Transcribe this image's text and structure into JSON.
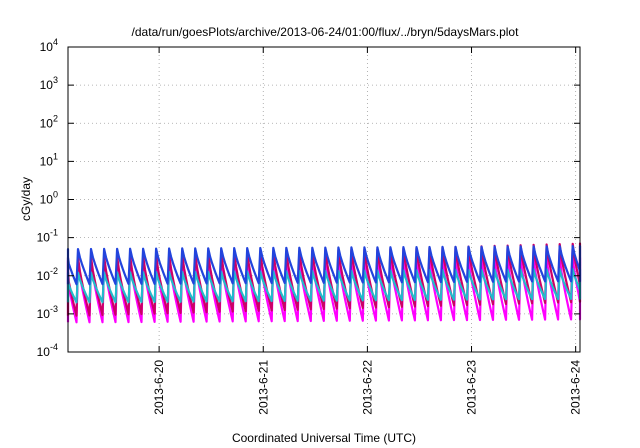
{
  "chart_data": {
    "type": "line",
    "title": "/data/run/goesPlots/archive/2013-06-24/01:00/flux/../bryn/5daysMars.plot",
    "xlabel": "Coordinated Universal Time (UTC)",
    "ylabel": "cGy/day",
    "y_scale": "log",
    "ylim": [
      0.0001,
      10000
    ],
    "y_ticks": [
      {
        "base": "10",
        "exp": "-4",
        "value": 0.0001
      },
      {
        "base": "10",
        "exp": "-3",
        "value": 0.001
      },
      {
        "base": "10",
        "exp": "-2",
        "value": 0.01
      },
      {
        "base": "10",
        "exp": "-1",
        "value": 0.1
      },
      {
        "base": "10",
        "exp": "0",
        "value": 1
      },
      {
        "base": "10",
        "exp": "1",
        "value": 10
      },
      {
        "base": "10",
        "exp": "2",
        "value": 100
      },
      {
        "base": "10",
        "exp": "3",
        "value": 1000
      },
      {
        "base": "10",
        "exp": "4",
        "value": 10000
      }
    ],
    "xlim": [
      "2013-06-19 03:00",
      "2013-06-24 01:00"
    ],
    "x_ticks": [
      "2013-6-20",
      "2013-6-21",
      "2013-6-22",
      "2013-6-23",
      "2013-6-24"
    ],
    "grid": true,
    "cycle_period_hours": 3,
    "series": [
      {
        "color": "#ff00ff",
        "peak": 0.025,
        "trough": 0.0006,
        "peak_late": 0.03
      },
      {
        "color": "#cc0066",
        "peak": 0.03,
        "trough": 0.0009,
        "peak_late": 0.07
      },
      {
        "color": "#22bbcc",
        "peak": 0.012,
        "trough": 0.002,
        "peak_late": 0.015
      },
      {
        "color": "#2244dd",
        "peak": 0.05,
        "trough": 0.006,
        "peak_late": 0.06
      }
    ]
  }
}
